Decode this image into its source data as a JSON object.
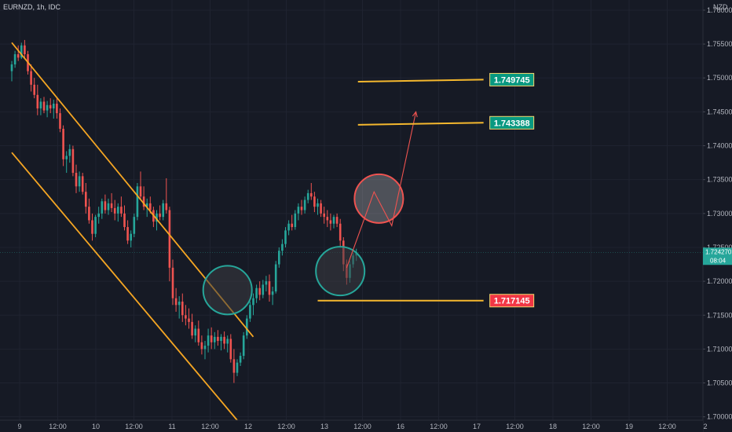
{
  "header": {
    "symbol": "EURNZD, 1h, IDC",
    "currency": "NZD"
  },
  "chart_data": {
    "type": "candlestick",
    "ylim": [
      1.6995,
      1.7615
    ],
    "y_ticks": [
      "1.760000",
      "1.755000",
      "1.750000",
      "1.745000",
      "1.740000",
      "1.735000",
      "1.730000",
      "1.725000",
      "1.720000",
      "1.715000",
      "1.710000",
      "1.705000",
      "1.700000"
    ],
    "x_ticks": [
      "9",
      "12:00",
      "10",
      "12:00",
      "11",
      "12:00",
      "12",
      "12:00",
      "13",
      "12:00",
      "16",
      "12:00",
      "17",
      "12:00",
      "18",
      "12:00",
      "19",
      "12:00",
      "2"
    ],
    "current_price": "1.724270",
    "countdown": "08:04",
    "levels": [
      {
        "label": "1.749745",
        "value": 1.749745,
        "color": "#089981"
      },
      {
        "label": "1.743388",
        "value": 1.743388,
        "color": "#089981"
      },
      {
        "label": "1.717145",
        "value": 1.717145,
        "color": "#f23645"
      }
    ],
    "colors": {
      "up": "#26a69a",
      "down": "#ef5350",
      "channel": "#f5a623",
      "level_line": "#f5b82e",
      "circle_green": "#26a69a",
      "circle_red": "#ef5350",
      "path": "#ef5350",
      "background": "#161a25",
      "price_line": "#26a69a"
    },
    "candles": [
      [
        1.751,
        1.7525,
        1.7495,
        1.752
      ],
      [
        1.752,
        1.754,
        1.7515,
        1.7535
      ],
      [
        1.7535,
        1.7548,
        1.7525,
        1.753
      ],
      [
        1.753,
        1.7552,
        1.7528,
        1.7548
      ],
      [
        1.7548,
        1.7556,
        1.753,
        1.7535
      ],
      [
        1.7535,
        1.754,
        1.7505,
        1.751
      ],
      [
        1.751,
        1.752,
        1.748,
        1.749
      ],
      [
        1.749,
        1.75,
        1.747,
        1.7475
      ],
      [
        1.7475,
        1.749,
        1.7445,
        1.7455
      ],
      [
        1.7455,
        1.747,
        1.7445,
        1.7465
      ],
      [
        1.7465,
        1.7472,
        1.7448,
        1.7452
      ],
      [
        1.7452,
        1.7466,
        1.7442,
        1.746
      ],
      [
        1.746,
        1.747,
        1.7448,
        1.7455
      ],
      [
        1.7455,
        1.7468,
        1.744,
        1.7462
      ],
      [
        1.7462,
        1.747,
        1.744,
        1.7448
      ],
      [
        1.7448,
        1.7455,
        1.742,
        1.7425
      ],
      [
        1.7425,
        1.743,
        1.737,
        1.738
      ],
      [
        1.738,
        1.7392,
        1.736,
        1.7385
      ],
      [
        1.7385,
        1.7402,
        1.7375,
        1.7395
      ],
      [
        1.7395,
        1.74,
        1.7355,
        1.736
      ],
      [
        1.736,
        1.7372,
        1.733,
        1.734
      ],
      [
        1.734,
        1.7362,
        1.7332,
        1.7355
      ],
      [
        1.7355,
        1.736,
        1.7328,
        1.7332
      ],
      [
        1.7332,
        1.7345,
        1.73,
        1.731
      ],
      [
        1.731,
        1.7322,
        1.7285,
        1.729
      ],
      [
        1.729,
        1.73,
        1.726,
        1.727
      ],
      [
        1.727,
        1.7298,
        1.7265,
        1.7295
      ],
      [
        1.7295,
        1.731,
        1.7285,
        1.73
      ],
      [
        1.73,
        1.7322,
        1.7292,
        1.7318
      ],
      [
        1.7318,
        1.7328,
        1.73,
        1.7305
      ],
      [
        1.7305,
        1.7322,
        1.7298,
        1.7315
      ],
      [
        1.7315,
        1.733,
        1.7302,
        1.7308
      ],
      [
        1.7308,
        1.732,
        1.729,
        1.73
      ],
      [
        1.73,
        1.7315,
        1.7288,
        1.731
      ],
      [
        1.731,
        1.7325,
        1.7295,
        1.73
      ],
      [
        1.73,
        1.7312,
        1.7275,
        1.728
      ],
      [
        1.728,
        1.729,
        1.7255,
        1.726
      ],
      [
        1.726,
        1.7275,
        1.725,
        1.727
      ],
      [
        1.727,
        1.73,
        1.7265,
        1.7295
      ],
      [
        1.7295,
        1.7345,
        1.729,
        1.734
      ],
      [
        1.734,
        1.7362,
        1.732,
        1.7325
      ],
      [
        1.7325,
        1.734,
        1.7305,
        1.731
      ],
      [
        1.731,
        1.7322,
        1.7295,
        1.7315
      ],
      [
        1.7315,
        1.7325,
        1.73,
        1.7305
      ],
      [
        1.7305,
        1.731,
        1.728,
        1.7288
      ],
      [
        1.7288,
        1.7305,
        1.7275,
        1.73
      ],
      [
        1.73,
        1.7312,
        1.729,
        1.7295
      ],
      [
        1.7295,
        1.732,
        1.729,
        1.7315
      ],
      [
        1.7315,
        1.7352,
        1.73,
        1.7305
      ],
      [
        1.7305,
        1.731,
        1.72,
        1.722
      ],
      [
        1.722,
        1.7232,
        1.7165,
        1.7175
      ],
      [
        1.7175,
        1.719,
        1.7155,
        1.7165
      ],
      [
        1.7165,
        1.7178,
        1.7145,
        1.717
      ],
      [
        1.717,
        1.7182,
        1.714,
        1.715
      ],
      [
        1.715,
        1.7165,
        1.7135,
        1.7145
      ],
      [
        1.7145,
        1.716,
        1.713,
        1.714
      ],
      [
        1.714,
        1.7152,
        1.7115,
        1.712
      ],
      [
        1.712,
        1.7135,
        1.711,
        1.713
      ],
      [
        1.713,
        1.7142,
        1.7105,
        1.711
      ],
      [
        1.711,
        1.712,
        1.7092,
        1.71
      ],
      [
        1.71,
        1.7112,
        1.7085,
        1.7105
      ],
      [
        1.7105,
        1.713,
        1.7095,
        1.712
      ],
      [
        1.712,
        1.7132,
        1.71,
        1.711
      ],
      [
        1.711,
        1.7125,
        1.71,
        1.7118
      ],
      [
        1.7118,
        1.7128,
        1.7105,
        1.7112
      ],
      [
        1.7112,
        1.7122,
        1.7098,
        1.7118
      ],
      [
        1.7118,
        1.7126,
        1.71,
        1.7108
      ],
      [
        1.7108,
        1.712,
        1.7095,
        1.7115
      ],
      [
        1.7115,
        1.7122,
        1.708,
        1.7085
      ],
      [
        1.7085,
        1.71,
        1.705,
        1.7065
      ],
      [
        1.7065,
        1.7085,
        1.706,
        1.708
      ],
      [
        1.708,
        1.7095,
        1.7075,
        1.709
      ],
      [
        1.709,
        1.7125,
        1.7085,
        1.712
      ],
      [
        1.712,
        1.715,
        1.7115,
        1.7145
      ],
      [
        1.7145,
        1.717,
        1.714,
        1.7165
      ],
      [
        1.7165,
        1.7182,
        1.715,
        1.7175
      ],
      [
        1.7175,
        1.7195,
        1.7168,
        1.719
      ],
      [
        1.719,
        1.72,
        1.7172,
        1.718
      ],
      [
        1.718,
        1.7202,
        1.7175,
        1.7195
      ],
      [
        1.7195,
        1.7208,
        1.7185,
        1.72
      ],
      [
        1.72,
        1.721,
        1.717,
        1.718
      ],
      [
        1.718,
        1.7192,
        1.7165,
        1.7185
      ],
      [
        1.7185,
        1.723,
        1.7182,
        1.7225
      ],
      [
        1.7225,
        1.725,
        1.722,
        1.7245
      ],
      [
        1.7245,
        1.7262,
        1.7238,
        1.7255
      ],
      [
        1.7255,
        1.728,
        1.725,
        1.7275
      ],
      [
        1.7275,
        1.729,
        1.7268,
        1.7285
      ],
      [
        1.7285,
        1.7298,
        1.7275,
        1.728
      ],
      [
        1.728,
        1.7305,
        1.7276,
        1.73
      ],
      [
        1.73,
        1.7315,
        1.729,
        1.731
      ],
      [
        1.731,
        1.732,
        1.7298,
        1.7305
      ],
      [
        1.7305,
        1.7325,
        1.73,
        1.732
      ],
      [
        1.732,
        1.7335,
        1.7315,
        1.733
      ],
      [
        1.733,
        1.7345,
        1.732,
        1.7325
      ],
      [
        1.7325,
        1.7332,
        1.7302,
        1.731
      ],
      [
        1.731,
        1.7322,
        1.7298,
        1.7315
      ],
      [
        1.7315,
        1.732,
        1.7295,
        1.73
      ],
      [
        1.73,
        1.731,
        1.7285,
        1.7295
      ],
      [
        1.7295,
        1.7305,
        1.728,
        1.729
      ],
      [
        1.729,
        1.73,
        1.7275,
        1.7285
      ],
      [
        1.7285,
        1.7298,
        1.7278,
        1.7295
      ],
      [
        1.7295,
        1.73,
        1.728,
        1.7285
      ],
      [
        1.7285,
        1.7292,
        1.725,
        1.726
      ],
      [
        1.726,
        1.7265,
        1.7215,
        1.7225
      ],
      [
        1.7225,
        1.7232,
        1.7195,
        1.7205
      ],
      [
        1.7205,
        1.723,
        1.7198,
        1.7225
      ],
      [
        1.7225,
        1.7242,
        1.722,
        1.7238
      ],
      [
        1.7238,
        1.7248,
        1.723,
        1.7243
      ]
    ],
    "annotations": {
      "channel_upper": {
        "start": {
          "bar": 0,
          "price": 1.7552
        },
        "end": {
          "bar": 75,
          "price": 1.7118
        }
      },
      "channel_lower": {
        "start": {
          "bar": 0,
          "price": 1.739
        },
        "end": {
          "bar": 70,
          "price": 1.6995
        }
      },
      "circles": [
        {
          "center": {
            "bar": 67,
            "price": 1.7187
          },
          "color_key": "circle_green"
        },
        {
          "center": {
            "bar": 102,
            "price": 1.7215
          },
          "color_key": "circle_green"
        },
        {
          "center": {
            "bar": 114,
            "price": 1.7322
          },
          "color_key": "circle_red"
        }
      ],
      "path": [
        {
          "bar": 104,
          "price": 1.722
        },
        {
          "bar": 112.5,
          "price": 1.7332
        },
        {
          "bar": 118,
          "price": 1.7282
        },
        {
          "bar": 125.5,
          "price": 1.745
        }
      ],
      "level_segments": [
        {
          "start_bar": 107.5,
          "end_bar": 146.5,
          "tilt": 0.0003
        },
        {
          "start_bar": 107.5,
          "end_bar": 146.5,
          "tilt": 0.0003
        },
        {
          "start_bar": 95,
          "end_bar": 146.5,
          "tilt": 0.0
        }
      ]
    }
  }
}
